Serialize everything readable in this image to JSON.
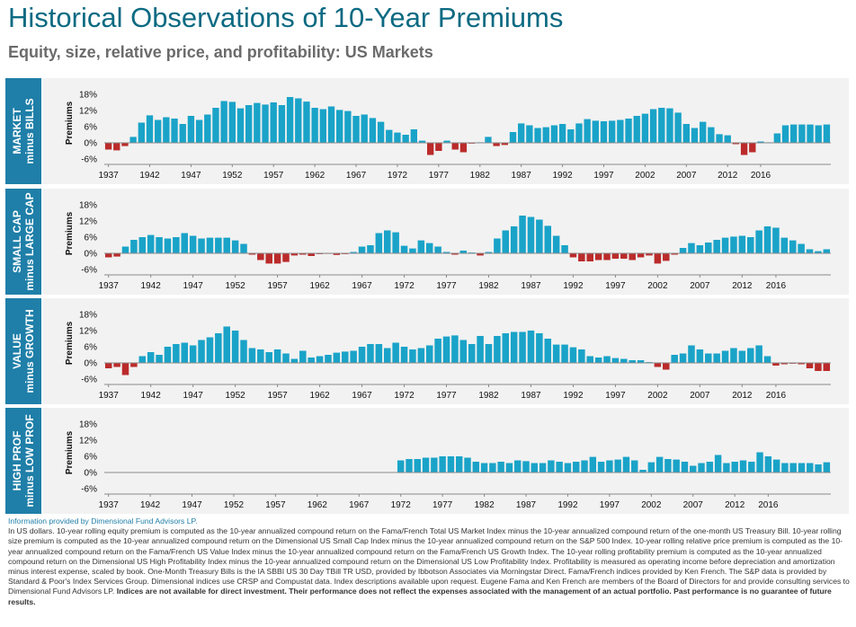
{
  "title": "Historical Observations of 10-Year Premiums",
  "subtitle": "Equity, size, relative price, and profitability: US Markets",
  "colors": {
    "positive": "#1aa3c8",
    "negative": "#bb2b2b",
    "label_bg": "#1f7fa8",
    "title": "#0b6a82"
  },
  "chart_data": [
    {
      "type": "bar",
      "label_line1": "MARKET",
      "label_line2": "minus BILLS",
      "ylabel": "Premiums",
      "ylim": [
        -6,
        18
      ],
      "yticks": [
        -6,
        0,
        6,
        12,
        18
      ],
      "ytick_labels": [
        "-6%",
        "0%",
        "6%",
        "12%",
        "18%"
      ],
      "x_start": 1937,
      "xtick_years": [
        1937,
        1942,
        1947,
        1952,
        1957,
        1962,
        1967,
        1972,
        1977,
        1982,
        1987,
        1992,
        1997,
        2002,
        2007,
        2012,
        2016
      ],
      "values": [
        -2.5,
        -2.8,
        -1.2,
        2.2,
        7.5,
        10.2,
        8.5,
        9.5,
        9.0,
        7.0,
        10.0,
        8.5,
        10.5,
        13.0,
        15.5,
        15.2,
        12.8,
        14.0,
        14.8,
        14.2,
        15.0,
        14.0,
        17.0,
        16.5,
        15.3,
        13.0,
        12.5,
        13.5,
        12.2,
        11.8,
        10.0,
        10.5,
        9.2,
        7.8,
        4.8,
        3.8,
        3.0,
        5.0,
        0.8,
        -4.5,
        -3.0,
        0.8,
        -2.5,
        -3.5,
        -0.3,
        0.2,
        2.2,
        -1.2,
        -0.8,
        4.0,
        7.2,
        6.5,
        5.5,
        5.8,
        6.5,
        7.0,
        5.0,
        7.2,
        8.8,
        8.2,
        8.0,
        8.2,
        8.5,
        9.0,
        10.0,
        10.8,
        12.5,
        13.0,
        12.8,
        11.2,
        7.0,
        5.5,
        7.8,
        5.8,
        3.2,
        2.8,
        -0.5,
        -4.5,
        -3.5,
        0.5,
        0.2,
        3.5,
        6.5,
        6.8,
        6.8,
        6.8,
        6.5,
        6.8
      ],
      "source_range": "1937–2016"
    },
    {
      "type": "bar",
      "label_line1": "SMALL CAP",
      "label_line2": "minus LARGE CAP",
      "ylabel": "Premiums",
      "ylim": [
        -6,
        18
      ],
      "yticks": [
        -6,
        0,
        6,
        12,
        18
      ],
      "ytick_labels": [
        "-6%",
        "0%",
        "6%",
        "12%",
        "18%"
      ],
      "x_start": 1937,
      "xtick_years": [
        1937,
        1942,
        1947,
        1952,
        1957,
        1962,
        1967,
        1972,
        1977,
        1982,
        1987,
        1992,
        1997,
        2002,
        2007,
        2012,
        2016
      ],
      "values": [
        -1.5,
        -1.2,
        2.5,
        5.0,
        6.0,
        6.8,
        6.0,
        5.5,
        6.0,
        7.5,
        6.5,
        5.5,
        5.8,
        5.8,
        5.8,
        4.8,
        3.5,
        -0.5,
        -2.5,
        -3.8,
        -3.8,
        -3.2,
        -0.8,
        -0.5,
        -1.0,
        -0.3,
        -0.2,
        -0.6,
        -0.3,
        0.5,
        2.5,
        3.0,
        7.5,
        8.5,
        7.8,
        2.8,
        1.8,
        4.8,
        3.8,
        2.5,
        0.5,
        -0.5,
        1.0,
        0.3,
        -0.8,
        0.5,
        5.5,
        8.5,
        10.0,
        14.0,
        13.5,
        12.5,
        10.2,
        6.5,
        3.0,
        -1.5,
        -3.0,
        -3.0,
        -2.5,
        -2.5,
        -2.0,
        -2.0,
        -2.5,
        -1.5,
        -0.8,
        -3.8,
        -2.8,
        -0.5,
        2.0,
        3.8,
        3.0,
        4.0,
        5.0,
        5.8,
        6.2,
        6.5,
        6.0,
        8.5,
        10.0,
        9.5,
        5.8,
        4.8,
        3.5,
        1.5,
        0.8,
        1.5
      ],
      "source_range": "1937–2016"
    },
    {
      "type": "bar",
      "label_line1": "VALUE",
      "label_line2": "minus GROWTH",
      "ylabel": "Premiums",
      "ylim": [
        -6,
        18
      ],
      "yticks": [
        -6,
        0,
        6,
        12,
        18
      ],
      "ytick_labels": [
        "-6%",
        "0%",
        "6%",
        "12%",
        "18%"
      ],
      "x_start": 1937,
      "xtick_years": [
        1937,
        1942,
        1947,
        1952,
        1957,
        1962,
        1967,
        1972,
        1977,
        1982,
        1987,
        1992,
        1997,
        2002,
        2007,
        2012,
        2016
      ],
      "values": [
        -2.0,
        -1.5,
        -4.5,
        -1.5,
        2.5,
        4.0,
        3.0,
        6.0,
        7.0,
        7.5,
        6.5,
        8.5,
        9.5,
        11.0,
        13.5,
        12.0,
        8.5,
        5.5,
        5.0,
        4.0,
        5.0,
        3.5,
        1.5,
        4.5,
        2.0,
        2.5,
        3.0,
        3.8,
        4.2,
        4.5,
        6.0,
        7.0,
        7.0,
        5.5,
        7.5,
        6.0,
        5.0,
        5.5,
        6.5,
        9.0,
        9.8,
        10.2,
        8.5,
        7.0,
        10.0,
        7.0,
        10.0,
        11.0,
        11.5,
        11.5,
        12.0,
        11.0,
        9.0,
        6.8,
        6.8,
        5.8,
        5.0,
        2.5,
        2.0,
        2.5,
        1.8,
        1.5,
        1.0,
        1.0,
        0.3,
        -1.5,
        -2.5,
        3.0,
        3.5,
        6.5,
        5.0,
        3.5,
        3.5,
        4.5,
        5.5,
        4.5,
        5.5,
        6.5,
        2.5,
        -1.0,
        -0.5,
        -0.3,
        -0.5,
        -2.0,
        -3.0,
        -3.0
      ],
      "source_range": "1937–2016"
    },
    {
      "type": "bar",
      "label_line1": "HIGH PROF",
      "label_line2": "minus LOW PROF",
      "ylabel": "Premiums",
      "ylim": [
        -6,
        18
      ],
      "yticks": [
        -6,
        0,
        6,
        12,
        18
      ],
      "ytick_labels": [
        "-6%",
        "0%",
        "6%",
        "12%",
        "18%"
      ],
      "x_start": 1937,
      "xtick_years": [
        1937,
        1942,
        1947,
        1952,
        1957,
        1962,
        1967,
        1972,
        1977,
        1982,
        1987,
        1992,
        1997,
        2002,
        2007,
        2012,
        2016
      ],
      "values": [
        null,
        null,
        null,
        null,
        null,
        null,
        null,
        null,
        null,
        null,
        null,
        null,
        null,
        null,
        null,
        null,
        null,
        null,
        null,
        null,
        null,
        null,
        null,
        null,
        null,
        null,
        null,
        null,
        null,
        null,
        null,
        null,
        null,
        null,
        null,
        4.5,
        5.0,
        5.0,
        5.5,
        5.5,
        6.0,
        6.0,
        6.0,
        5.5,
        4.0,
        3.5,
        3.5,
        4.0,
        3.5,
        4.5,
        4.2,
        3.5,
        3.5,
        4.5,
        4.0,
        3.5,
        4.0,
        4.5,
        5.8,
        4.0,
        4.5,
        4.8,
        5.8,
        4.5,
        1.0,
        3.8,
        5.8,
        5.0,
        4.8,
        4.0,
        2.5,
        3.5,
        4.0,
        6.5,
        3.5,
        4.0,
        4.5,
        4.0,
        7.5,
        6.0,
        4.8,
        3.5,
        3.5,
        3.5,
        3.5,
        3.0,
        3.8
      ],
      "source_range": "1972–2016"
    }
  ],
  "footnote": {
    "source": "Information provided by Dimensional Fund Advisors LP.",
    "body": "In US dollars. 10-year rolling equity premium is computed as the 10-year annualized compound return on the Fama/French Total US Market Index minus the 10-year annualized compound return of the one-month US Treasury Bill. 10-year rolling size premium is computed as the 10-year annualized compound return on the Dimensional US Small Cap Index minus the 10-year annualized compound return on the S&P 500 Index. 10-year rolling relative price premium is computed as the 10-year annualized compound return on the Fama/French US Value Index minus the 10-year annualized compound return on the Fama/French US Growth Index. The 10-year rolling profitability premium is computed as the 10-year annualized compound return on the Dimensional US High Profitability Index minus the 10-year annualized compound return on the Dimensional US Low Profitability Index. Profitability is measured as operating income before depreciation and amortization minus interest expense, scaled by book. One-Month Treasury Bills is the IA SBBI US 30 Day TBill TR USD, provided by Ibbotson Associates via Morningstar Direct. Fama/French indices provided by Ken French. The S&P data is provided by Standard & Poor's Index Services Group.  Dimensional indices use CRSP and Compustat data. Index descriptions available upon request. Eugene Fama and Ken French are members of the Board of Directors for and provide consulting services to Dimensional Fund Advisors LP. ",
    "bold": "Indices are not available for direct investment. Their performance does not reflect the expenses associated with the management of an actual portfolio. Past performance is no guarantee of future results."
  }
}
